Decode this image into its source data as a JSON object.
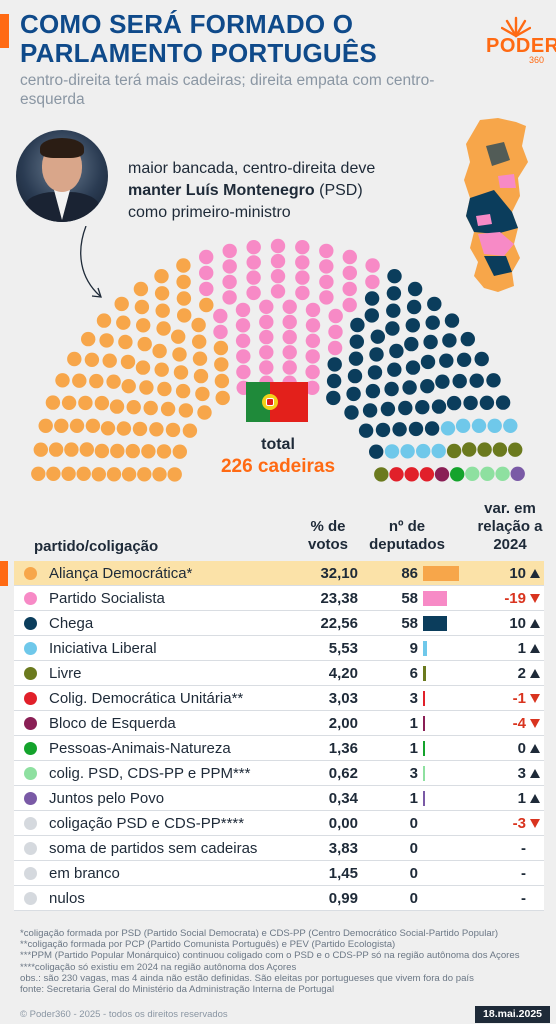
{
  "header": {
    "title": "COMO SERÁ FORMADO O PARLAMENTO PORTUGUÊS",
    "subtitle": "centro-direita terá mais cadeiras; direita empata com centro-esquerda",
    "logo_text": "PODER",
    "logo_number": "360"
  },
  "annotation": {
    "text_before": "maior bancada, centro-direita deve ",
    "text_bold": "manter Luís Montenegro",
    "text_after": " (PSD) como primeiro-ministro"
  },
  "total": {
    "label": "total",
    "value": "226 cadeiras"
  },
  "table": {
    "headers": {
      "party": "partido/coligação",
      "pct": "% de votos",
      "seats": "nº de deputados",
      "var": "var. em relação a 2024"
    },
    "rows": [
      {
        "name": "Aliança Democrática*",
        "pct": "32,10",
        "seats": "86",
        "var": "10",
        "dir": "up",
        "color": "#f7a64a",
        "highlight": true
      },
      {
        "name": "Partido Socialista",
        "pct": "23,38",
        "seats": "58",
        "var": "-19",
        "dir": "down",
        "color": "#f78ac6"
      },
      {
        "name": "Chega",
        "pct": "22,56",
        "seats": "58",
        "var": "10",
        "dir": "up",
        "color": "#0b3d5c"
      },
      {
        "name": "Iniciativa Liberal",
        "pct": "5,53",
        "seats": "9",
        "var": "1",
        "dir": "up",
        "color": "#6fc8ea"
      },
      {
        "name": "Livre",
        "pct": "4,20",
        "seats": "6",
        "var": "2",
        "dir": "up",
        "color": "#6b7a1e"
      },
      {
        "name": "Colig. Democrática Unitária**",
        "pct": "3,03",
        "seats": "3",
        "var": "-1",
        "dir": "down",
        "color": "#e1202a"
      },
      {
        "name": "Bloco de Esquerda",
        "pct": "2,00",
        "seats": "1",
        "var": "-4",
        "dir": "down",
        "color": "#8a1f55"
      },
      {
        "name": "Pessoas-Animais-Natureza",
        "pct": "1,36",
        "seats": "1",
        "var": "0",
        "dir": "up",
        "color": "#14a32c"
      },
      {
        "name": "colig. PSD, CDS-PP e PPM***",
        "pct": "0,62",
        "seats": "3",
        "var": "3",
        "dir": "up",
        "color": "#8ee0a0"
      },
      {
        "name": "Juntos pelo Povo",
        "pct": "0,34",
        "seats": "1",
        "var": "1",
        "dir": "up",
        "color": "#7a5aa6"
      },
      {
        "name": "coligação PSD e CDS-PP****",
        "pct": "0,00",
        "seats": "0",
        "var": "-3",
        "dir": "down",
        "color": "#d5d9de"
      },
      {
        "name": "soma de partidos sem cadeiras",
        "pct": "3,83",
        "seats": "0",
        "var": "-",
        "dir": "",
        "color": "#d5d9de"
      },
      {
        "name": "em branco",
        "pct": "1,45",
        "seats": "0",
        "var": "-",
        "dir": "",
        "color": "#d5d9de"
      },
      {
        "name": "nulos",
        "pct": "0,99",
        "seats": "0",
        "var": "-",
        "dir": "",
        "color": "#d5d9de"
      }
    ]
  },
  "notes": [
    "*coligação formada por PSD (Partido Social Democrata) e CDS-PP (Centro Democrático Social-Partido Popular)",
    "**coligação formada por PCP (Partido Comunista Português) e PEV (Partido Ecologista)",
    "***PPM (Partido Popular Monárquico) continuou coligado com o PSD e o CDS-PP só na região autônoma dos Açores",
    "****coligação só existiu em 2024 na região autônoma dos Açores",
    "obs.: são 230 vagas, mas 4 ainda não estão definidas. São eleitas por portugueses que vivem fora do país",
    "fonte: Secretaria Geral do Ministério da Administração Interna de Portugal"
  ],
  "footer": {
    "copyright": "© Poder360 - 2025 - todos os direitos reservados",
    "date": "18.mai.2025"
  },
  "chart_data": [
    {
      "type": "bar",
      "categories": [
        "Aliança Democrática*",
        "Partido Socialista",
        "Chega",
        "Iniciativa Liberal",
        "Livre",
        "Colig. Democrática Unitária**",
        "Bloco de Esquerda",
        "Pessoas-Animais-Natureza",
        "colig. PSD, CDS-PP e PPM***",
        "Juntos pelo Povo",
        "coligação PSD e CDS-PP****",
        "soma de partidos sem cadeiras",
        "em branco",
        "nulos"
      ],
      "series": [
        {
          "name": "% de votos",
          "values": [
            32.1,
            23.38,
            22.56,
            5.53,
            4.2,
            3.03,
            2.0,
            1.36,
            0.62,
            0.34,
            0.0,
            3.83,
            1.45,
            0.99
          ]
        },
        {
          "name": "nº de deputados",
          "values": [
            86,
            58,
            58,
            9,
            6,
            3,
            1,
            1,
            3,
            1,
            0,
            0,
            0,
            0
          ]
        },
        {
          "name": "var. em relação a 2024",
          "values": [
            10,
            -19,
            10,
            1,
            2,
            -1,
            -4,
            0,
            3,
            1,
            -3,
            null,
            null,
            null
          ]
        }
      ],
      "title": "",
      "xlabel": "",
      "ylabel": ""
    },
    {
      "type": "parliament",
      "total_seats": 226,
      "parties": [
        {
          "name": "Aliança Democrática*",
          "seats": 86,
          "color": "#f7a64a"
        },
        {
          "name": "Partido Socialista",
          "seats": 58,
          "color": "#f78ac6"
        },
        {
          "name": "Chega",
          "seats": 58,
          "color": "#0b3d5c"
        },
        {
          "name": "Iniciativa Liberal",
          "seats": 9,
          "color": "#6fc8ea"
        },
        {
          "name": "Livre",
          "seats": 6,
          "color": "#6b7a1e"
        },
        {
          "name": "Colig. Democrática Unitária**",
          "seats": 3,
          "color": "#e1202a"
        },
        {
          "name": "Bloco de Esquerda",
          "seats": 1,
          "color": "#8a1f55"
        },
        {
          "name": "Pessoas-Animais-Natureza",
          "seats": 1,
          "color": "#14a32c"
        },
        {
          "name": "colig. PSD, CDS-PP e PPM***",
          "seats": 3,
          "color": "#8ee0a0"
        },
        {
          "name": "Juntos pelo Povo",
          "seats": 1,
          "color": "#7a5aa6"
        }
      ]
    }
  ]
}
